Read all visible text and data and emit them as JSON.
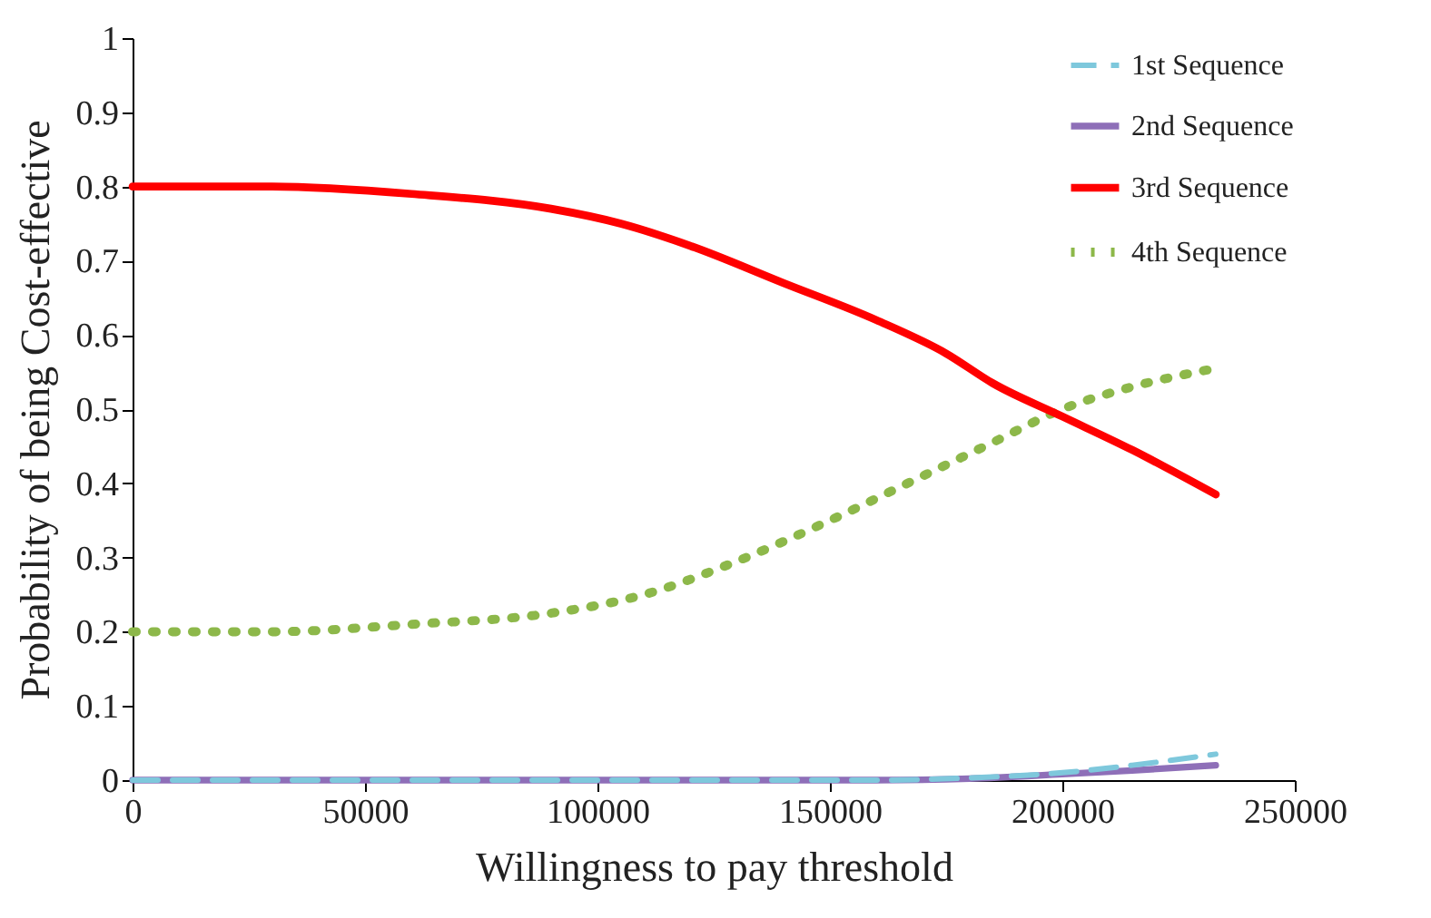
{
  "chart_data": {
    "type": "line",
    "xlabel": "Willingness to pay threshold",
    "ylabel": "Probability of  being Cost-effective",
    "xlim": [
      0,
      250000
    ],
    "xticks": [
      0,
      50000,
      100000,
      150000,
      200000,
      250000
    ],
    "ylim": [
      0,
      1
    ],
    "yticks": [
      0,
      0.1,
      0.2,
      0.3,
      0.4,
      0.5,
      0.6,
      0.7,
      0.8,
      0.9,
      1
    ],
    "grid": false,
    "legend": "top right",
    "series": [
      {
        "name": "1st Sequence",
        "color": "#7ec8dc",
        "line_style": "dashed",
        "x": [
          0,
          50000,
          100000,
          160000,
          180000,
          200000,
          215000,
          233000
        ],
        "values": [
          0,
          0,
          0,
          0,
          0.003,
          0.01,
          0.02,
          0.035
        ]
      },
      {
        "name": "2nd Sequence",
        "color": "#8e6fb8",
        "line_style": "solid",
        "x": [
          0,
          50000,
          100000,
          160000,
          180000,
          200000,
          215000,
          233000
        ],
        "values": [
          0,
          0,
          0,
          0,
          0.002,
          0.008,
          0.013,
          0.02
        ]
      },
      {
        "name": "3rd Sequence",
        "color": "#ff0000",
        "line_style": "solid",
        "x": [
          0,
          30000,
          60000,
          90000,
          105000,
          120000,
          140000,
          160000,
          175000,
          185000,
          200000,
          215000,
          233000
        ],
        "values": [
          0.8,
          0.8,
          0.79,
          0.77,
          0.75,
          0.72,
          0.67,
          0.62,
          0.575,
          0.535,
          0.49,
          0.445,
          0.385
        ]
      },
      {
        "name": "4th Sequence",
        "color": "#8db84a",
        "line_style": "dotted",
        "x": [
          0,
          30000,
          60000,
          90000,
          110000,
          130000,
          150000,
          170000,
          185000,
          200000,
          215000,
          233000
        ],
        "values": [
          0.2,
          0.2,
          0.21,
          0.225,
          0.25,
          0.295,
          0.35,
          0.41,
          0.455,
          0.5,
          0.53,
          0.555
        ]
      }
    ]
  }
}
